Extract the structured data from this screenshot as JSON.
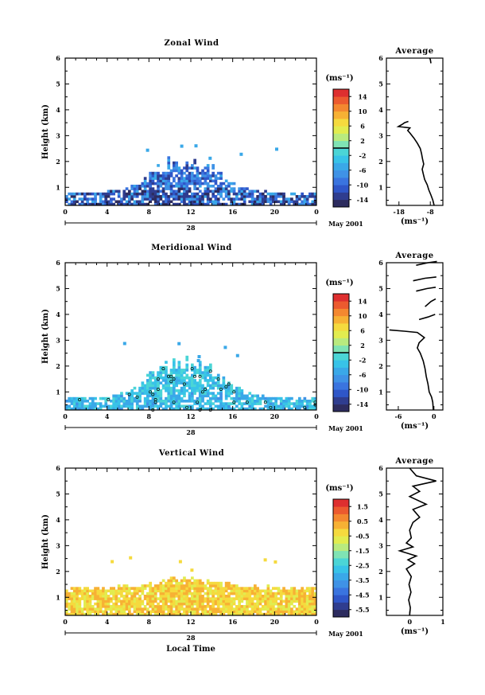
{
  "chart_data": [
    {
      "type": "heatmap",
      "title": "Zonal Wind",
      "ylabel": "Height (km)",
      "xlabel": "",
      "date_label": "28",
      "month_label": "May 2001",
      "x_ticks": [
        "0",
        "4",
        "8",
        "12",
        "16",
        "20",
        "0"
      ],
      "xlim": [
        0,
        24
      ],
      "y_ticks": [
        "1",
        "2",
        "3",
        "4",
        "5",
        "6"
      ],
      "ylim": [
        0.3,
        6
      ],
      "colorbar": {
        "unit": "(ms⁻¹)",
        "labels": [
          "14",
          "10",
          "6",
          "2",
          "-2",
          "-6",
          "-10",
          "-14"
        ],
        "range": [
          -16,
          16
        ],
        "contour_level": 0
      },
      "field": {
        "dx": 0.25,
        "dy": 0.1,
        "y0": 0.3,
        "max_top_km": 2.4,
        "value_center": -9,
        "value_spread": 5
      },
      "profile": {
        "title": "Average",
        "xlabel": "(ms⁻¹)",
        "x_ticks": [
          "-18",
          "-8"
        ],
        "xlim": [
          -22,
          -4
        ],
        "y_ticks": [
          "1",
          "2",
          "3",
          "4",
          "5",
          "6"
        ],
        "points": [
          [
            -6.8,
            0.3
          ],
          [
            -7.2,
            0.5
          ],
          [
            -7.8,
            0.7
          ],
          [
            -8.5,
            0.9
          ],
          [
            -9.0,
            1.1
          ],
          [
            -9.8,
            1.3
          ],
          [
            -10.2,
            1.5
          ],
          [
            -10.6,
            1.7
          ],
          [
            -10.1,
            1.9
          ],
          [
            -10.5,
            2.1
          ],
          [
            -10.8,
            2.3
          ],
          [
            -11.2,
            2.5
          ],
          [
            -12.1,
            2.7
          ],
          [
            -13.2,
            2.9
          ],
          [
            -14.5,
            3.1
          ],
          [
            -15.2,
            3.2
          ],
          [
            -14.5,
            3.3
          ],
          [
            -18.2,
            3.35
          ],
          [
            -16.8,
            3.45
          ],
          [
            -16.2,
            3.5
          ],
          [
            -15.0,
            3.55
          ]
        ],
        "extra_segments": [
          [
            [
              -7.8,
              5.8
            ],
            [
              -8.0,
              5.95
            ],
            [
              -8.2,
              6.0
            ]
          ]
        ]
      }
    },
    {
      "type": "heatmap",
      "title": "Meridional Wind",
      "ylabel": "Height (km)",
      "xlabel": "",
      "date_label": "28",
      "month_label": "May 2001",
      "x_ticks": [
        "0",
        "4",
        "8",
        "12",
        "16",
        "20",
        "0"
      ],
      "xlim": [
        0,
        24
      ],
      "y_ticks": [
        "1",
        "2",
        "3",
        "4",
        "5",
        "6"
      ],
      "ylim": [
        0.3,
        6
      ],
      "colorbar": {
        "unit": "(ms⁻¹)",
        "labels": [
          "14",
          "10",
          "6",
          "2",
          "-2",
          "-6",
          "-10",
          "-14"
        ],
        "range": [
          -16,
          16
        ],
        "contour_level": 0
      },
      "field": {
        "dx": 0.25,
        "dy": 0.1,
        "y0": 0.3,
        "max_top_km": 2.6,
        "value_center": -2.5,
        "value_spread": 2.5
      },
      "profile": {
        "title": "Average",
        "xlabel": "(ms⁻¹)",
        "x_ticks": [
          "-6",
          "0"
        ],
        "xlim": [
          -8,
          1.5
        ],
        "y_ticks": [
          "1",
          "2",
          "3",
          "4",
          "5",
          "6"
        ],
        "points": [
          [
            -0.1,
            0.3
          ],
          [
            -0.2,
            0.6
          ],
          [
            -0.4,
            0.8
          ],
          [
            -0.8,
            1.0
          ],
          [
            -1.0,
            1.3
          ],
          [
            -1.3,
            1.6
          ],
          [
            -1.5,
            1.9
          ],
          [
            -1.8,
            2.2
          ],
          [
            -2.3,
            2.5
          ],
          [
            -2.8,
            2.7
          ],
          [
            -2.5,
            2.9
          ],
          [
            -1.6,
            3.1
          ],
          [
            -2.8,
            3.3
          ],
          [
            -5.0,
            3.35
          ],
          [
            -7.5,
            3.4
          ]
        ],
        "extra_segments": [
          [
            [
              -2.5,
              3.8
            ],
            [
              -1.0,
              3.9
            ],
            [
              0.2,
              4.0
            ]
          ],
          [
            [
              -1.5,
              4.3
            ],
            [
              -0.5,
              4.5
            ],
            [
              0.3,
              4.6
            ]
          ],
          [
            [
              -3.0,
              4.9
            ],
            [
              -1.2,
              5.0
            ],
            [
              0.3,
              5.05
            ]
          ],
          [
            [
              -3.5,
              5.3
            ],
            [
              -1.5,
              5.4
            ],
            [
              0.4,
              5.45
            ]
          ],
          [
            [
              -3.0,
              5.9
            ],
            [
              -1.0,
              6.0
            ],
            [
              0.5,
              6.05
            ]
          ]
        ]
      }
    },
    {
      "type": "heatmap",
      "title": "Vertical Wind",
      "ylabel": "Height (km)",
      "xlabel": "Local Time",
      "date_label": "28",
      "month_label": "May 2001",
      "x_ticks": [
        "0",
        "4",
        "8",
        "12",
        "16",
        "20",
        "0"
      ],
      "xlim": [
        0,
        24
      ],
      "y_ticks": [
        "1",
        "2",
        "3",
        "4",
        "5",
        "6"
      ],
      "ylim": [
        0.3,
        6
      ],
      "colorbar": {
        "unit": "(ms⁻¹)",
        "labels": [
          "1.5",
          "0.5",
          "-0.5",
          "-1.5",
          "-2.5",
          "-3.5",
          "-4.5",
          "-5.5"
        ],
        "range": [
          -6,
          2
        ],
        "contour_level": null
      },
      "field": {
        "dx": 0.25,
        "dy": 0.1,
        "y0": 0.3,
        "max_top_km": 1.6,
        "value_center": -0.2,
        "value_spread": 0.6
      },
      "profile": {
        "title": "Average",
        "xlabel": "(ms⁻¹)",
        "x_ticks": [
          "0",
          "1"
        ],
        "xlim": [
          -0.7,
          1.0
        ],
        "y_ticks": [
          "1",
          "2",
          "3",
          "4",
          "5",
          "6"
        ],
        "points": [
          [
            0.0,
            0.3
          ],
          [
            0.02,
            0.6
          ],
          [
            -0.03,
            0.9
          ],
          [
            0.04,
            1.2
          ],
          [
            -0.02,
            1.5
          ],
          [
            0.05,
            1.8
          ],
          [
            -0.1,
            2.1
          ],
          [
            0.15,
            2.3
          ],
          [
            -0.05,
            2.45
          ],
          [
            0.2,
            2.6
          ],
          [
            -0.3,
            2.8
          ],
          [
            0.1,
            2.95
          ],
          [
            -0.1,
            3.1
          ],
          [
            0.05,
            3.3
          ],
          [
            0.0,
            3.6
          ],
          [
            0.1,
            3.9
          ],
          [
            0.3,
            4.1
          ],
          [
            0.1,
            4.4
          ],
          [
            0.5,
            4.6
          ],
          [
            0.0,
            4.9
          ],
          [
            0.3,
            5.1
          ],
          [
            0.1,
            5.3
          ],
          [
            0.8,
            5.5
          ],
          [
            0.2,
            5.7
          ],
          [
            0.0,
            6.0
          ]
        ],
        "extra_segments": []
      }
    }
  ]
}
